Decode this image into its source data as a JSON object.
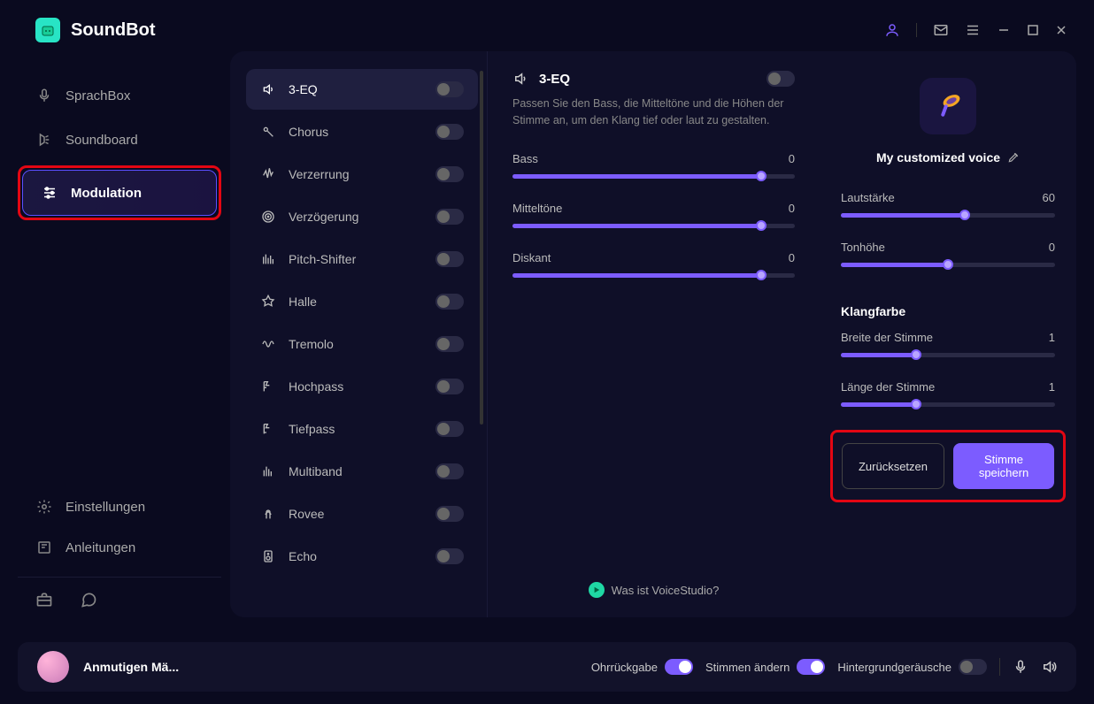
{
  "app": {
    "name": "SoundBot"
  },
  "sidebar": {
    "items": [
      {
        "label": "SprachBox"
      },
      {
        "label": "Soundboard"
      },
      {
        "label": "Modulation"
      }
    ],
    "bottom": [
      {
        "label": "Einstellungen"
      },
      {
        "label": "Anleitungen"
      }
    ]
  },
  "effects": [
    {
      "label": "3-EQ",
      "active": true
    },
    {
      "label": "Chorus"
    },
    {
      "label": "Verzerrung"
    },
    {
      "label": "Verzögerung"
    },
    {
      "label": "Pitch-Shifter"
    },
    {
      "label": "Halle"
    },
    {
      "label": "Tremolo"
    },
    {
      "label": "Hochpass"
    },
    {
      "label": "Tiefpass"
    },
    {
      "label": "Multiband"
    },
    {
      "label": "Rovee"
    },
    {
      "label": "Echo"
    }
  ],
  "detail": {
    "title": "3-EQ",
    "description": "Passen Sie den Bass, die Mitteltöne und die Höhen der Stimme an, um den Klang tief oder laut zu gestalten.",
    "sliders": [
      {
        "label": "Bass",
        "value": "0",
        "fill": 88
      },
      {
        "label": "Mitteltöne",
        "value": "0",
        "fill": 88
      },
      {
        "label": "Diskant",
        "value": "0",
        "fill": 88
      }
    ],
    "voicestudio_prefix": "Was ist ",
    "voicestudio_link": "VoiceStudio?"
  },
  "voice": {
    "name": "My customized voice",
    "sliders1": [
      {
        "label": "Lautstärke",
        "value": "60",
        "fill": 58
      },
      {
        "label": "Tonhöhe",
        "value": "0",
        "fill": 50
      }
    ],
    "section2": "Klangfarbe",
    "sliders2": [
      {
        "label": "Breite der Stimme",
        "value": "1",
        "fill": 35
      },
      {
        "label": "Länge der Stimme",
        "value": "1",
        "fill": 35
      }
    ],
    "reset": "Zurücksetzen",
    "save": "Stimme speichern"
  },
  "footer": {
    "profile": "Anmutigen Mä...",
    "ear": "Ohrrückgabe",
    "voices": "Stimmen ändern",
    "noise": "Hintergrundgeräusche"
  },
  "colors": {
    "accent": "#7c5cff",
    "highlight": "#e30613"
  }
}
